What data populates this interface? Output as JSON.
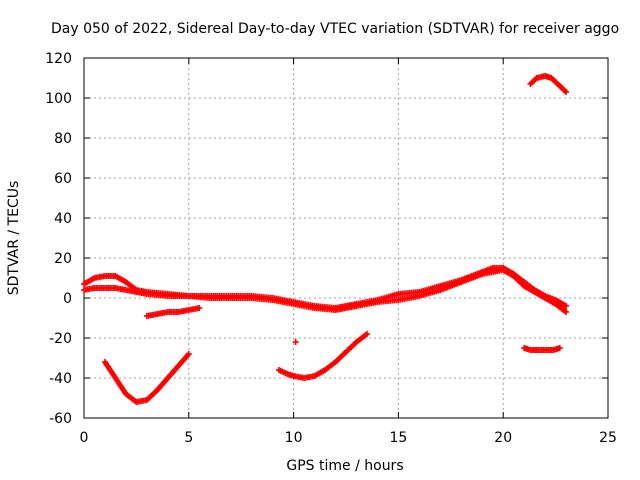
{
  "chart_data": {
    "type": "scatter",
    "title": "Day 050 of 2022, Sidereal Day-to-day VTEC variation (SDTVAR) for receiver aggo",
    "xlabel": "GPS time / hours",
    "ylabel": "SDTVAR / TECUs",
    "xlim": [
      0,
      25
    ],
    "ylim": [
      -60,
      120
    ],
    "xticks": [
      0,
      5,
      10,
      15,
      20,
      25
    ],
    "yticks": [
      -60,
      -40,
      -20,
      0,
      20,
      40,
      60,
      80,
      100,
      120
    ],
    "xtick_labels": [
      "0",
      "5",
      "10",
      "15",
      "20",
      "25"
    ],
    "ytick_labels": [
      "-60",
      "-40",
      "-20",
      "0",
      "20",
      "40",
      "60",
      "80",
      "100",
      "120"
    ],
    "grid": true,
    "marker": "+",
    "marker_color": "#ff0000",
    "series": [
      {
        "name": "main-band-upper",
        "x": [
          0,
          0.5,
          1,
          1.5,
          2,
          2.5,
          3,
          4,
          5,
          6,
          7,
          8,
          9,
          10,
          11,
          12,
          12.5,
          13,
          14,
          15,
          16,
          17,
          18,
          19,
          19.5,
          20,
          20.5,
          21,
          21.5,
          22,
          22.5,
          23
        ],
        "y": [
          7,
          10,
          11,
          11,
          8,
          4,
          3,
          2,
          1,
          1,
          1,
          1,
          0,
          -2,
          -4,
          -5,
          -4,
          -3,
          -1,
          2,
          3,
          6,
          9,
          13,
          15,
          15,
          12,
          8,
          4,
          1,
          -1,
          -4
        ]
      },
      {
        "name": "main-band-lower",
        "x": [
          0,
          0.5,
          1,
          1.5,
          2,
          2.5,
          3,
          4,
          5,
          6,
          7,
          8,
          9,
          10,
          11,
          12,
          12.5,
          13,
          14,
          15,
          16,
          17,
          18,
          19,
          20,
          20.5,
          21,
          21.5,
          22,
          22.5,
          23
        ],
        "y": [
          4,
          5,
          5,
          5,
          4,
          3,
          2,
          1,
          1,
          0,
          0,
          0,
          -1,
          -3,
          -5,
          -6,
          -5,
          -4,
          -2,
          -1,
          1,
          4,
          8,
          12,
          14,
          11,
          6,
          3,
          0,
          -3,
          -7
        ]
      },
      {
        "name": "arc-low-left",
        "x": [
          1,
          1.5,
          2,
          2.5,
          3,
          3.5,
          4,
          4.5,
          5
        ],
        "y": [
          -32,
          -40,
          -48,
          -52,
          -51,
          -46,
          -40,
          -34,
          -28
        ]
      },
      {
        "name": "short-negative-band",
        "x": [
          3,
          3.5,
          4,
          4.5,
          5,
          5.5
        ],
        "y": [
          -9,
          -8,
          -7,
          -7,
          -6,
          -5
        ]
      },
      {
        "name": "arc-mid",
        "x": [
          9.3,
          9.7,
          10,
          10.5,
          11,
          11.5,
          12,
          12.5,
          13,
          13.5
        ],
        "y": [
          -36,
          -38,
          -39,
          -40,
          -39,
          -36,
          -32,
          -27,
          -22,
          -18
        ]
      },
      {
        "name": "isolated-point",
        "x": [
          10.1
        ],
        "y": [
          -22
        ]
      },
      {
        "name": "right-cluster",
        "x": [
          21,
          21.3,
          21.6,
          22,
          22.4,
          22.7
        ],
        "y": [
          -25,
          -26,
          -26,
          -26,
          -26,
          -25
        ]
      },
      {
        "name": "top-arc",
        "x": [
          21.3,
          21.6,
          22,
          22.3,
          22.6,
          23
        ],
        "y": [
          107,
          110,
          111,
          110,
          107,
          103
        ]
      }
    ]
  }
}
